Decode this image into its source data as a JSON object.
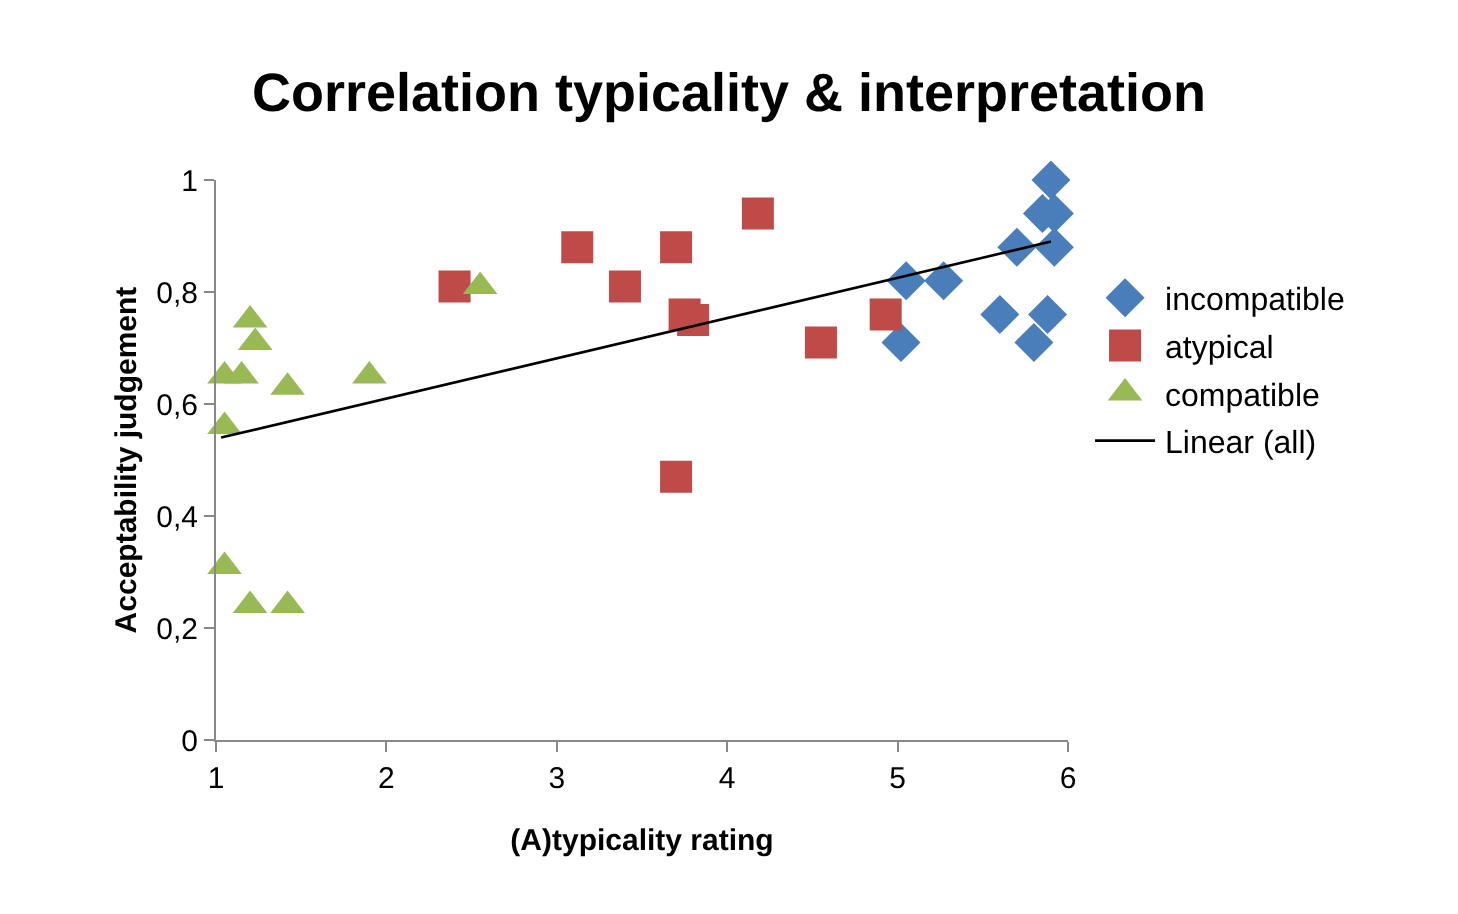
{
  "chart_data": {
    "type": "scatter",
    "title": "Correlation typicality & interpretation",
    "xlabel": "(A)typicality rating",
    "ylabel": "Acceptability judgement",
    "xlim": [
      1,
      6
    ],
    "xticks": [
      1,
      2,
      3,
      4,
      5,
      6
    ],
    "ylim": [
      0,
      1
    ],
    "yticks": [
      0,
      {
        "value": 0.2,
        "label": "0,2"
      },
      {
        "value": 0.4,
        "label": "0,4"
      },
      {
        "value": 0.6,
        "label": "0,6"
      },
      {
        "value": 0.8,
        "label": "0,8"
      },
      1
    ],
    "grid": false,
    "legend": "right",
    "series": [
      {
        "name": "incompatible",
        "color": "#4a7ebb",
        "marker": "diamond",
        "x": [
          5.9,
          5.85,
          5.92,
          5.7,
          5.92,
          5.05,
          5.27,
          5.02,
          5.6,
          5.88,
          5.8
        ],
        "values": [
          1.0,
          0.94,
          0.94,
          0.88,
          0.88,
          0.82,
          0.82,
          0.71,
          0.76,
          0.76,
          0.71
        ]
      },
      {
        "name": "atypical",
        "color": "#be4b48",
        "marker": "square",
        "x": [
          2.4,
          3.12,
          3.4,
          3.7,
          4.18,
          3.75,
          3.8,
          4.93,
          4.55,
          3.7
        ],
        "values": [
          0.81,
          0.88,
          0.81,
          0.88,
          0.94,
          0.76,
          0.75,
          0.76,
          0.71,
          0.47
        ]
      },
      {
        "name": "compatible",
        "color": "#98b954",
        "marker": "triangle",
        "x": [
          1.05,
          1.15,
          1.2,
          1.23,
          1.42,
          1.9,
          2.55,
          1.05,
          1.05,
          1.2,
          1.42
        ],
        "values": [
          0.65,
          0.65,
          0.75,
          0.71,
          0.63,
          0.65,
          0.81,
          0.56,
          0.31,
          0.24,
          0.24
        ]
      },
      {
        "name": "Linear (all)",
        "type": "line",
        "color": "#000000",
        "marker": "none",
        "line_style": "solid",
        "x": [
          1.03,
          5.9
        ],
        "values": [
          0.54,
          0.89
        ]
      }
    ]
  }
}
